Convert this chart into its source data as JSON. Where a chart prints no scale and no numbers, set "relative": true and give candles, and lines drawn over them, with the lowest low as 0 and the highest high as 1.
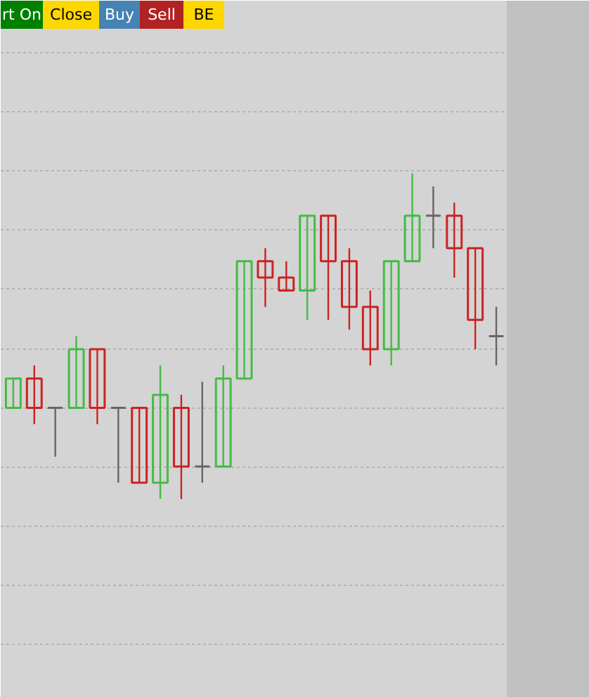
{
  "chart_data": {
    "type": "candlestick",
    "relative": true,
    "grid": "y",
    "categories": [
      null,
      null,
      null,
      null,
      null,
      null,
      null,
      null,
      null,
      null,
      null,
      null,
      null,
      null,
      null,
      null,
      null,
      null,
      null,
      null,
      null,
      null,
      null,
      null
    ],
    "ohlc": [
      [
        0.28,
        0.37,
        0.28,
        0.37
      ],
      [
        0.37,
        0.41,
        0.23,
        0.28
      ],
      [
        0.28,
        0.28,
        0.13,
        0.28
      ],
      [
        0.28,
        0.5,
        0.28,
        0.46
      ],
      [
        0.46,
        0.46,
        0.23,
        0.28
      ],
      [
        0.28,
        0.28,
        0.05,
        0.28
      ],
      [
        0.28,
        0.28,
        0.05,
        0.05
      ],
      [
        0.05,
        0.41,
        0,
        0.32
      ],
      [
        0.28,
        0.32,
        0,
        0.1
      ],
      [
        0.1,
        0.36,
        0.05,
        0.1
      ],
      [
        0.1,
        0.41,
        0.1,
        0.37
      ],
      [
        0.37,
        0.73,
        0.37,
        0.73
      ],
      [
        0.73,
        0.77,
        0.59,
        0.68
      ],
      [
        0.68,
        0.73,
        0.64,
        0.64
      ],
      [
        0.64,
        0.87,
        0.55,
        0.87
      ],
      [
        0.87,
        0.87,
        0.55,
        0.73
      ],
      [
        0.73,
        0.77,
        0.52,
        0.59
      ],
      [
        0.59,
        0.64,
        0.41,
        0.46
      ],
      [
        0.46,
        0.73,
        0.41,
        0.73
      ],
      [
        0.73,
        1.0,
        0.73,
        0.87
      ],
      [
        0.87,
        0.96,
        0.77,
        0.87
      ],
      [
        0.87,
        0.91,
        0.68,
        0.77
      ],
      [
        0.77,
        0.77,
        0.46,
        0.55
      ],
      [
        0.5,
        0.59,
        0.41,
        0.5
      ]
    ],
    "colors": [
      "#44bb44",
      "#cc2222",
      "#666666",
      "#44bb44",
      "#cc2222",
      "#666666",
      "#cc2222",
      "#44bb44",
      "#cc2222",
      "#666666",
      "#44bb44",
      "#44bb44",
      "#cc2222",
      "#cc2222",
      "#44bb44",
      "#cc2222",
      "#cc2222",
      "#cc2222",
      "#44bb44",
      "#44bb44",
      "#666666",
      "#cc2222",
      "#cc2222",
      "#666666"
    ],
    "annotations": [
      "rt On",
      "Close",
      "Buy",
      "Sell",
      "BE"
    ]
  }
}
